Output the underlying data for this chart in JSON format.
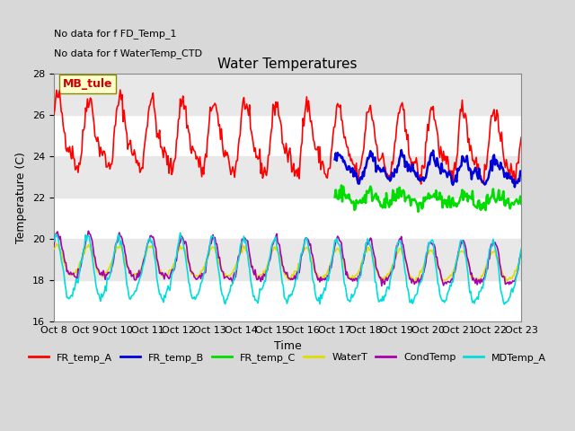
{
  "title": "Water Temperatures",
  "xlabel": "Time",
  "ylabel": "Temperature (C)",
  "ylim": [
    16,
    28
  ],
  "yticks": [
    16,
    18,
    20,
    22,
    24,
    26,
    28
  ],
  "x_labels": [
    "Oct 8",
    "Oct 9",
    "Oct 10",
    "Oct 11",
    "Oct 12",
    "Oct 13",
    "Oct 14",
    "Oct 15",
    "Oct 16",
    "Oct 17",
    "Oct 18",
    "Oct 19",
    "Oct 20",
    "Oct 21",
    "Oct 22",
    "Oct 23"
  ],
  "annotations": [
    "No data for f FD_Temp_1",
    "No data for f WaterTemp_CTD"
  ],
  "legend_box_label": "MB_tule",
  "legend_entries": [
    "FR_temp_A",
    "FR_temp_B",
    "FR_temp_C",
    "WaterT",
    "CondTemp",
    "MDTemp_A"
  ],
  "line_colors": [
    "#ff0000",
    "#0000dd",
    "#00dd00",
    "#dddd00",
    "#aa00aa",
    "#00dddd"
  ],
  "line_widths": [
    1.2,
    1.8,
    1.8,
    1.2,
    1.2,
    1.2
  ],
  "background_color": "#d8d8d8",
  "plot_bg_color": "#d8d8d8",
  "title_fontsize": 11,
  "axis_fontsize": 9,
  "tick_fontsize": 8
}
